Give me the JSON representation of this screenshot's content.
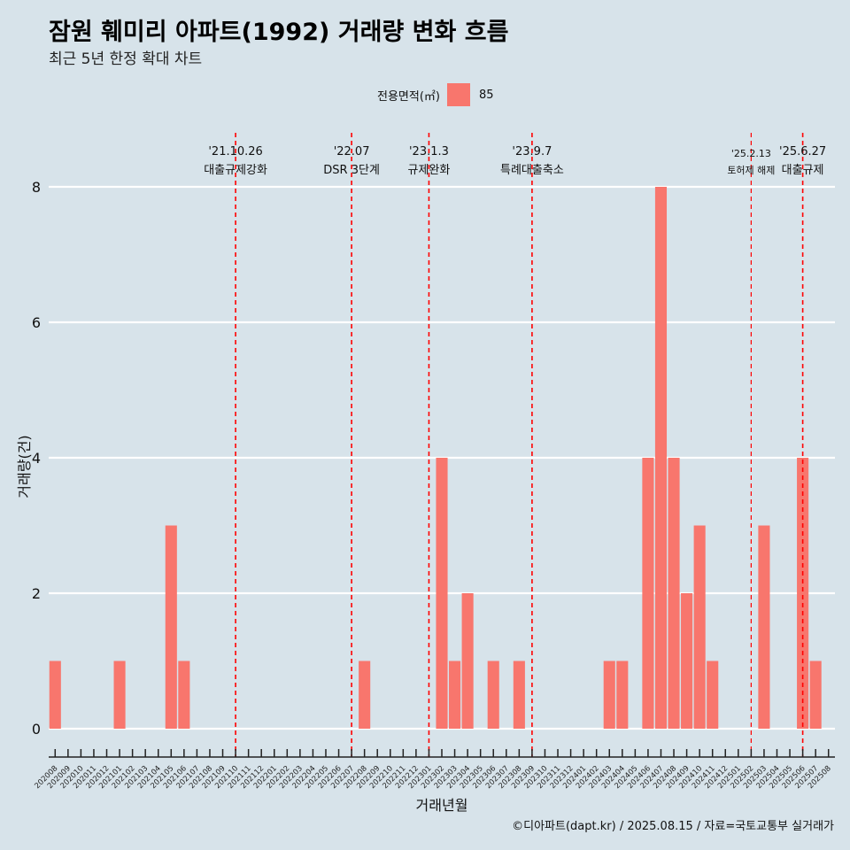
{
  "title": "잠원 훼미리 아파트(1992) 거래량 변화 흐름",
  "subtitle": "최근 5년 한정 확대 차트",
  "legend": {
    "title": "전용면적(㎡)",
    "label": "85",
    "color": "#f8766d"
  },
  "caption": "©디아파트(dapt.kr) / 2025.08.15 / 자료=국토교통부 실거래가",
  "chart_data": {
    "type": "bar",
    "xlabel": "거래년월",
    "ylabel": "거래량(건)",
    "ylim": [
      0,
      8
    ],
    "yticks": [
      0,
      2,
      4,
      6,
      8
    ],
    "grid": true,
    "legend_position": "top",
    "categories": [
      "202008",
      "202009",
      "202010",
      "202011",
      "202012",
      "202101",
      "202102",
      "202103",
      "202104",
      "202105",
      "202106",
      "202107",
      "202108",
      "202109",
      "202110",
      "202111",
      "202112",
      "202201",
      "202202",
      "202203",
      "202204",
      "202205",
      "202206",
      "202207",
      "202208",
      "202209",
      "202210",
      "202211",
      "202212",
      "202301",
      "202302",
      "202303",
      "202304",
      "202305",
      "202306",
      "202307",
      "202308",
      "202309",
      "202310",
      "202311",
      "202312",
      "202401",
      "202402",
      "202403",
      "202404",
      "202405",
      "202406",
      "202407",
      "202408",
      "202409",
      "202410",
      "202411",
      "202412",
      "202501",
      "202502",
      "202503",
      "202504",
      "202505",
      "202506",
      "202507",
      "202508"
    ],
    "series": [
      {
        "name": "85",
        "color": "#f8766d",
        "values": [
          1,
          0,
          0,
          0,
          0,
          1,
          0,
          0,
          0,
          3,
          1,
          0,
          0,
          0,
          0,
          0,
          0,
          0,
          0,
          0,
          0,
          0,
          0,
          0,
          1,
          0,
          0,
          0,
          0,
          0,
          4,
          1,
          2,
          0,
          1,
          0,
          1,
          0,
          0,
          0,
          0,
          0,
          0,
          1,
          1,
          0,
          4,
          8,
          4,
          2,
          3,
          1,
          0,
          0,
          0,
          3,
          0,
          0,
          4,
          1,
          0
        ]
      }
    ],
    "annotations": [
      {
        "category": "202110",
        "date": "'21.10.26",
        "label": "대출규제강화"
      },
      {
        "category": "202207",
        "date": "'22.07",
        "label": "DSR 3단계"
      },
      {
        "category": "202301",
        "date": "'23.1.3",
        "label": "규제완화"
      },
      {
        "category": "202309",
        "date": "'23.9.7",
        "label": "특례대출축소"
      },
      {
        "category": "202502",
        "date": "'25.2.13",
        "label": "토허제 해제",
        "small": true
      },
      {
        "category": "202506",
        "date": "'25.6.27",
        "label": "대출규제"
      }
    ],
    "annotation_color": "#ff0000"
  }
}
